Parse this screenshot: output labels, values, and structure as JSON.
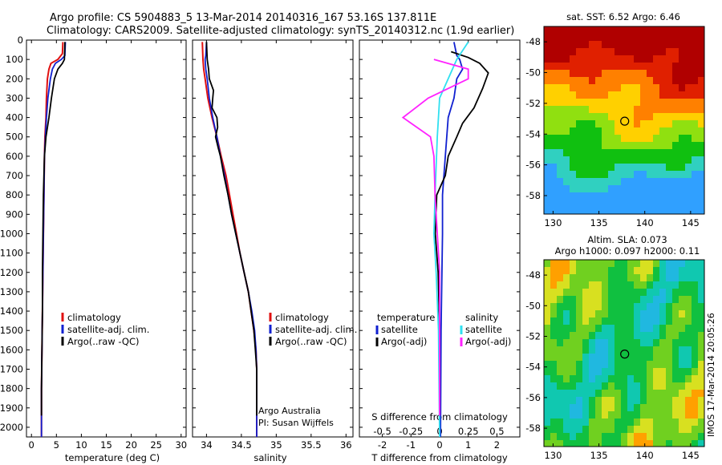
{
  "header": {
    "line1": "Argo profile: CS 5904883_5 13-Mar-2014 20140316_167 53.16S 137.811E",
    "line2": "Climatology: CARS2009. Satellite-adjusted climatology: synTS_20140312.nc (1.9d earlier)"
  },
  "footer": {
    "credit1": "Argo Australia",
    "credit2": "PI: Susan Wijffels",
    "stamp": "IMOS 17-Mar-2014 20:05:26"
  },
  "colors": {
    "climatology": "#e01010",
    "satellite": "#1020d0",
    "argo": "#000000",
    "sat_salinity": "#30e0f0",
    "argo_salinity": "#ff22ff"
  },
  "chart_data": [
    {
      "id": "temperature",
      "type": "line",
      "xlabel": "temperature (deg C)",
      "ylim": [
        2050,
        0
      ],
      "xlim": [
        -1,
        31
      ],
      "xticks": [
        "0",
        "5",
        "10",
        "15",
        "20",
        "25",
        "30"
      ],
      "yticks": [
        "0",
        "100",
        "200",
        "300",
        "400",
        "500",
        "600",
        "700",
        "800",
        "900",
        "1000",
        "1100",
        "1200",
        "1300",
        "1400",
        "1500",
        "1600",
        "1700",
        "1800",
        "1900",
        "2000"
      ],
      "legend": [
        "climatology",
        "satellite-adj. clim.",
        "Argo(..raw -QC)"
      ],
      "legend_position": "lower-center",
      "series": [
        {
          "name": "climatology",
          "points": [
            [
              6.3,
              10
            ],
            [
              6.2,
              70
            ],
            [
              5.3,
              100
            ],
            [
              3.9,
              120
            ],
            [
              3.5,
              150
            ],
            [
              3.2,
              200
            ],
            [
              3.0,
              300
            ],
            [
              2.9,
              400
            ],
            [
              2.7,
              500
            ],
            [
              2.6,
              600
            ],
            [
              2.5,
              800
            ],
            [
              2.4,
              1000
            ],
            [
              2.3,
              1200
            ],
            [
              2.2,
              1400
            ],
            [
              2.1,
              1600
            ],
            [
              2.0,
              1800
            ],
            [
              2.0,
              2050
            ]
          ]
        },
        {
          "name": "satellite-adj. clim.",
          "points": [
            [
              6.8,
              10
            ],
            [
              6.7,
              80
            ],
            [
              6.0,
              100
            ],
            [
              4.8,
              120
            ],
            [
              4.2,
              150
            ],
            [
              3.8,
              200
            ],
            [
              3.3,
              300
            ],
            [
              3.0,
              400
            ],
            [
              2.8,
              500
            ],
            [
              2.6,
              600
            ],
            [
              2.5,
              800
            ],
            [
              2.4,
              1000
            ],
            [
              2.3,
              1200
            ],
            [
              2.2,
              1400
            ],
            [
              2.1,
              1600
            ],
            [
              2.0,
              1800
            ],
            [
              2.0,
              2050
            ]
          ]
        },
        {
          "name": "Argo(..raw -QC)",
          "points": [
            [
              6.7,
              10
            ],
            [
              6.6,
              100
            ],
            [
              6.2,
              120
            ],
            [
              5.3,
              150
            ],
            [
              4.6,
              200
            ],
            [
              4.0,
              300
            ],
            [
              3.5,
              400
            ],
            [
              2.9,
              500
            ],
            [
              2.6,
              600
            ],
            [
              2.4,
              800
            ],
            [
              2.3,
              1000
            ],
            [
              2.2,
              1200
            ],
            [
              2.2,
              1400
            ],
            [
              2.1,
              1600
            ],
            [
              2.0,
              1800
            ],
            [
              2.0,
              1940
            ]
          ]
        }
      ]
    },
    {
      "id": "salinity",
      "type": "line",
      "xlabel": "salinity",
      "ylim": [
        2050,
        0
      ],
      "xlim": [
        33.8,
        36.1
      ],
      "xticks": [
        "34",
        "34.5",
        "35",
        "35.5",
        "36"
      ],
      "legend": [
        "climatology",
        "satellite-adj. clim.",
        "Argo(..raw -QC)"
      ],
      "legend_position": "lower-right",
      "series": [
        {
          "name": "climatology",
          "points": [
            [
              33.94,
              10
            ],
            [
              33.95,
              100
            ],
            [
              33.96,
              150
            ],
            [
              33.98,
              200
            ],
            [
              34.02,
              300
            ],
            [
              34.08,
              400
            ],
            [
              34.15,
              500
            ],
            [
              34.21,
              600
            ],
            [
              34.28,
              700
            ],
            [
              34.33,
              800
            ],
            [
              34.38,
              900
            ],
            [
              34.43,
              1000
            ],
            [
              34.48,
              1100
            ],
            [
              34.54,
              1200
            ],
            [
              34.6,
              1300
            ],
            [
              34.64,
              1400
            ],
            [
              34.68,
              1500
            ],
            [
              34.71,
              1600
            ],
            [
              34.72,
              1700
            ],
            [
              34.72,
              1800
            ],
            [
              34.72,
              2050
            ]
          ]
        },
        {
          "name": "satellite-adj. clim.",
          "points": [
            [
              34.0,
              10
            ],
            [
              33.99,
              80
            ],
            [
              33.98,
              100
            ],
            [
              33.99,
              150
            ],
            [
              34.01,
              200
            ],
            [
              34.04,
              300
            ],
            [
              34.09,
              400
            ],
            [
              34.15,
              500
            ],
            [
              34.2,
              600
            ],
            [
              34.26,
              700
            ],
            [
              34.31,
              800
            ],
            [
              34.36,
              900
            ],
            [
              34.42,
              1000
            ],
            [
              34.48,
              1100
            ],
            [
              34.54,
              1200
            ],
            [
              34.6,
              1300
            ],
            [
              34.65,
              1400
            ],
            [
              34.69,
              1500
            ],
            [
              34.71,
              1600
            ],
            [
              34.72,
              1700
            ],
            [
              34.72,
              1800
            ],
            [
              34.72,
              2050
            ]
          ]
        },
        {
          "name": "Argo(..raw -QC)",
          "points": [
            [
              34.0,
              10
            ],
            [
              34.01,
              100
            ],
            [
              34.03,
              150
            ],
            [
              34.04,
              200
            ],
            [
              34.1,
              260
            ],
            [
              34.09,
              300
            ],
            [
              34.08,
              350
            ],
            [
              34.15,
              400
            ],
            [
              34.16,
              450
            ],
            [
              34.13,
              500
            ],
            [
              34.17,
              560
            ],
            [
              34.2,
              600
            ],
            [
              34.25,
              700
            ],
            [
              34.31,
              800
            ],
            [
              34.36,
              900
            ],
            [
              34.42,
              1000
            ],
            [
              34.48,
              1100
            ],
            [
              34.54,
              1200
            ],
            [
              34.6,
              1300
            ],
            [
              34.64,
              1400
            ],
            [
              34.68,
              1500
            ],
            [
              34.7,
              1600
            ],
            [
              34.72,
              1700
            ],
            [
              34.72,
              1800
            ],
            [
              34.72,
              1940
            ]
          ]
        }
      ]
    },
    {
      "id": "difference",
      "type": "line",
      "xlabel": "T difference from climatology",
      "xlabel_top": "S difference from climatology",
      "ylim": [
        2050,
        0
      ],
      "xlim": [
        -2.8,
        2.8
      ],
      "xticks": [
        "-2",
        "-1",
        "0",
        "1",
        "2"
      ],
      "xticks_top": [
        "-0.5",
        "-0.25",
        "0",
        "0.25",
        "0.5"
      ],
      "legend_titles": [
        "temperature",
        "salinity"
      ],
      "legend": [
        "satellite",
        "Argo(-adj)",
        "satellite",
        "Argo(-adj)"
      ],
      "legend_position": "lower-center",
      "series": [
        {
          "name": "satellite",
          "quantity": "temperature",
          "points": [
            [
              0.5,
              10
            ],
            [
              0.6,
              80
            ],
            [
              0.7,
              100
            ],
            [
              0.8,
              150
            ],
            [
              0.6,
              200
            ],
            [
              0.5,
              300
            ],
            [
              0.3,
              400
            ],
            [
              0.2,
              600
            ],
            [
              0.1,
              800
            ],
            [
              0.1,
              1000
            ],
            [
              0.05,
              1500
            ],
            [
              0.03,
              2050
            ]
          ]
        },
        {
          "name": "Argo(-adj)",
          "quantity": "temperature",
          "points": [
            [
              0.4,
              60
            ],
            [
              1.0,
              90
            ],
            [
              1.4,
              120
            ],
            [
              1.7,
              170
            ],
            [
              1.5,
              250
            ],
            [
              1.2,
              350
            ],
            [
              0.8,
              430
            ],
            [
              0.6,
              500
            ],
            [
              0.3,
              600
            ],
            [
              0.2,
              700
            ],
            [
              -0.1,
              800
            ],
            [
              -0.15,
              1000
            ],
            [
              -0.05,
              1200
            ],
            [
              0.0,
              1500
            ],
            [
              0.0,
              1940
            ]
          ]
        },
        {
          "name": "satellite",
          "quantity": "salinity",
          "points": [
            [
              0.25,
              10
            ],
            [
              0.15,
              100
            ],
            [
              0.0,
              300
            ],
            [
              -0.02,
              500
            ],
            [
              -0.04,
              800
            ],
            [
              -0.05,
              1000
            ],
            [
              -0.03,
              1200
            ],
            [
              -0.01,
              1500
            ],
            [
              0.0,
              2050
            ]
          ]
        },
        {
          "name": "Argo(-adj)",
          "quantity": "salinity",
          "points": [
            [
              -0.05,
              100
            ],
            [
              0.25,
              150
            ],
            [
              0.25,
              200
            ],
            [
              -0.1,
              300
            ],
            [
              -0.32,
              400
            ],
            [
              -0.08,
              500
            ],
            [
              -0.05,
              600
            ],
            [
              -0.04,
              800
            ],
            [
              -0.02,
              1000
            ],
            [
              0.0,
              1200
            ],
            [
              0.0,
              1500
            ],
            [
              0.0,
              1940
            ]
          ]
        }
      ]
    },
    {
      "id": "sst_map",
      "type": "heatmap",
      "title": "sat. SST: 6.52  Argo: 6.46",
      "xlim": [
        129,
        146.5
      ],
      "ylim": [
        -59.2,
        -47
      ],
      "xticks": [
        "130",
        "135",
        "140",
        "145"
      ],
      "yticks": [
        "-48",
        "-50",
        "-52",
        "-54",
        "-56",
        "-58"
      ],
      "marker": {
        "lon": 137.811,
        "lat": -53.16
      },
      "palette": [
        "#30a0ff",
        "#30d0c0",
        "#10c010",
        "#90e010",
        "#ffd000",
        "#ff8000",
        "#e02000",
        "#b00000"
      ]
    },
    {
      "id": "sla_map",
      "type": "heatmap",
      "title": "Altim. SLA: 0.073",
      "title2": "Argo h1000: 0.097  h2000: 0.11",
      "xlim": [
        129,
        146.5
      ],
      "ylim": [
        -59.2,
        -47
      ],
      "xticks": [
        "130",
        "135",
        "140",
        "145"
      ],
      "yticks": [
        "-48",
        "-50",
        "-52",
        "-54",
        "-56",
        "-58"
      ],
      "marker": {
        "lon": 137.811,
        "lat": -53.16
      },
      "palette": [
        "#20b8e0",
        "#10c8b0",
        "#10c040",
        "#70d020",
        "#d8e020",
        "#ffa000",
        "#ff4000"
      ]
    }
  ]
}
